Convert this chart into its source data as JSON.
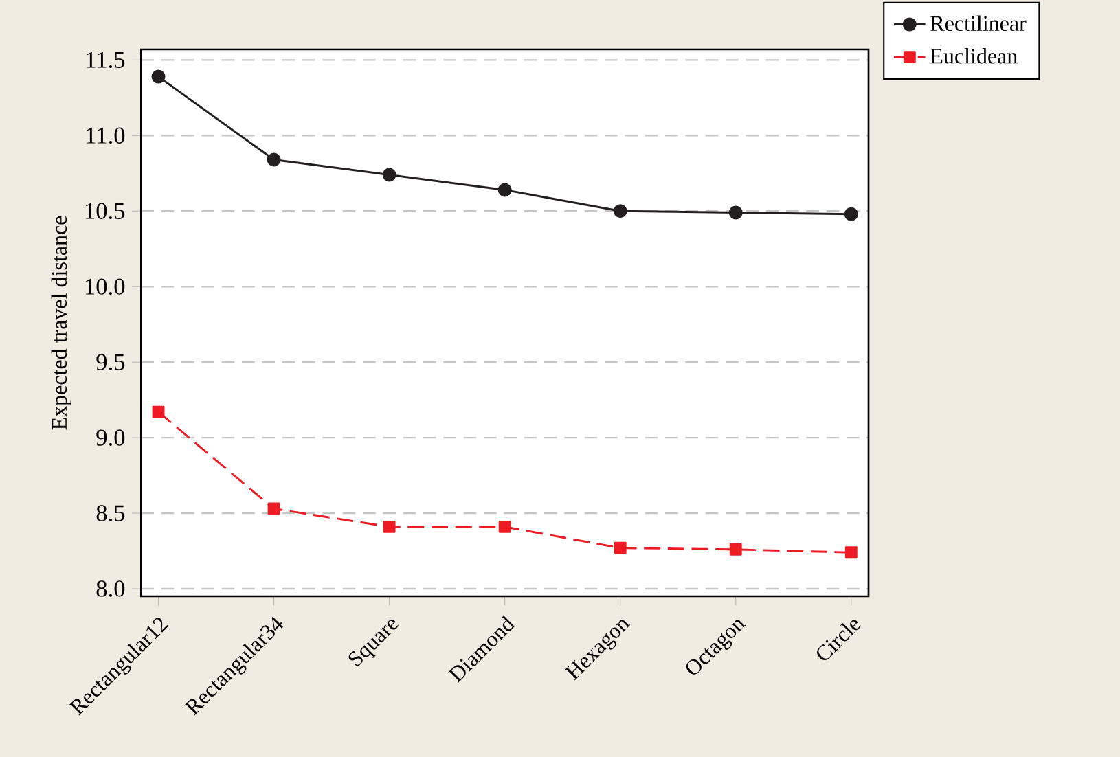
{
  "chart_data": {
    "type": "line",
    "ylabel": "Expected travel distance",
    "categories": [
      "Rectangular12",
      "Rectangular34",
      "Square",
      "Diamond",
      "Hexagon",
      "Octagon",
      "Circle"
    ],
    "series": [
      {
        "name": "Rectilinear",
        "color": "#231f20",
        "values": [
          11.39,
          10.84,
          10.74,
          10.64,
          10.5,
          10.49,
          10.48
        ],
        "marker": "circle",
        "line_style": "solid"
      },
      {
        "name": "Euclidean",
        "color": "#ed1c24",
        "values": [
          9.17,
          8.53,
          8.41,
          8.41,
          8.27,
          8.26,
          8.24
        ],
        "marker": "square",
        "line_style": "dashed"
      }
    ],
    "ylim": [
      7.95,
      11.57
    ],
    "yticks": [
      {
        "value": 8.0,
        "label": "8.0"
      },
      {
        "value": 8.5,
        "label": "8.5"
      },
      {
        "value": 9.0,
        "label": "9.0"
      },
      {
        "value": 9.5,
        "label": "9.5"
      },
      {
        "value": 10.0,
        "label": "10.0"
      },
      {
        "value": 10.5,
        "label": "10.5"
      },
      {
        "value": 11.0,
        "label": "11.0"
      },
      {
        "value": 11.5,
        "label": "11.5"
      }
    ],
    "grid": "y",
    "legend": "top right"
  }
}
